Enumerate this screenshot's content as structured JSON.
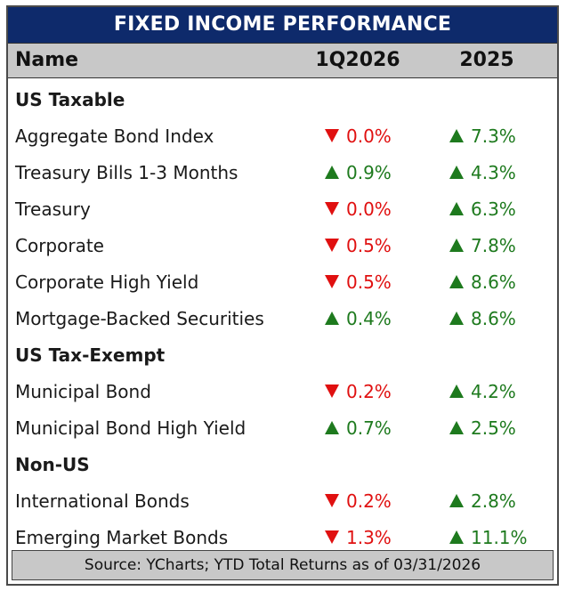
{
  "title": "FIXED INCOME PERFORMANCE",
  "columns": {
    "name": "Name",
    "q": "1Q2026",
    "y": "2025"
  },
  "colors": {
    "title_bg": "#0e2a6b",
    "header_bg": "#c8c8c8",
    "negative": "#e01010",
    "positive": "#1e7a1e"
  },
  "chart_data": {
    "type": "table",
    "title": "FIXED INCOME PERFORMANCE",
    "columns": [
      "Name",
      "1Q2026",
      "2025"
    ],
    "rows": [
      {
        "section": "US Taxable"
      },
      {
        "name": "Aggregate Bond Index",
        "q": {
          "value": "0.0%",
          "dir": "down"
        },
        "y": {
          "value": "7.3%",
          "dir": "up"
        }
      },
      {
        "name": "Treasury Bills 1-3 Months",
        "q": {
          "value": "0.9%",
          "dir": "up"
        },
        "y": {
          "value": "4.3%",
          "dir": "up"
        }
      },
      {
        "name": "Treasury",
        "q": {
          "value": "0.0%",
          "dir": "down"
        },
        "y": {
          "value": "6.3%",
          "dir": "up"
        }
      },
      {
        "name": "Corporate",
        "q": {
          "value": "0.5%",
          "dir": "down"
        },
        "y": {
          "value": "7.8%",
          "dir": "up"
        }
      },
      {
        "name": "Corporate High Yield",
        "q": {
          "value": "0.5%",
          "dir": "down"
        },
        "y": {
          "value": "8.6%",
          "dir": "up"
        }
      },
      {
        "name": "Mortgage-Backed Securities",
        "q": {
          "value": "0.4%",
          "dir": "up"
        },
        "y": {
          "value": "8.6%",
          "dir": "up"
        }
      },
      {
        "section": "US Tax-Exempt"
      },
      {
        "name": "Municipal Bond",
        "q": {
          "value": "0.2%",
          "dir": "down"
        },
        "y": {
          "value": "4.2%",
          "dir": "up"
        }
      },
      {
        "name": "Municipal Bond High Yield",
        "q": {
          "value": "0.7%",
          "dir": "up"
        },
        "y": {
          "value": "2.5%",
          "dir": "up"
        }
      },
      {
        "section": "Non-US"
      },
      {
        "name": "International Bonds",
        "q": {
          "value": "0.2%",
          "dir": "down"
        },
        "y": {
          "value": "2.8%",
          "dir": "up"
        }
      },
      {
        "name": "Emerging Market Bonds",
        "q": {
          "value": "1.3%",
          "dir": "down"
        },
        "y": {
          "value": "11.1%",
          "dir": "up"
        }
      }
    ]
  },
  "footer": "Source: YCharts; YTD Total Returns as of 03/31/2026"
}
